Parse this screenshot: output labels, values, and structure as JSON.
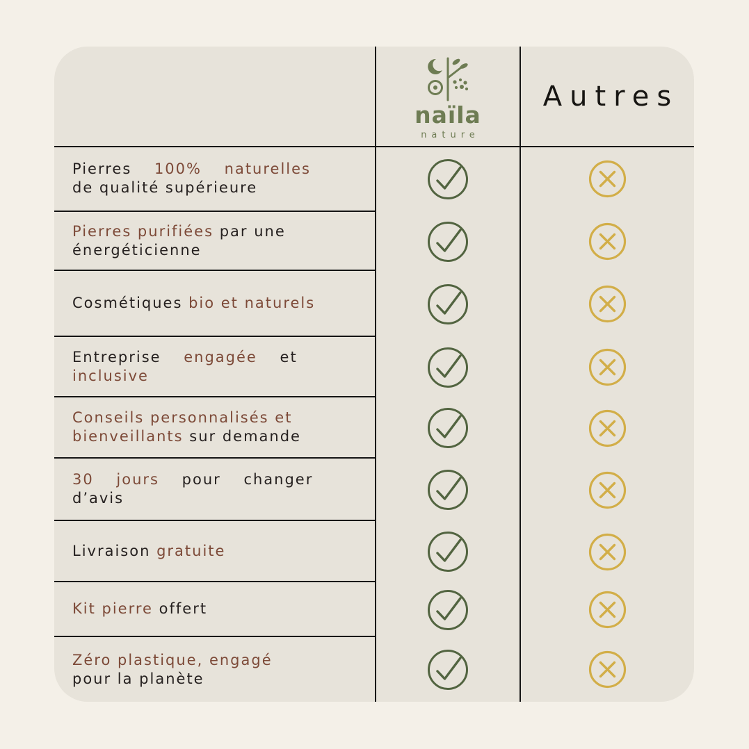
{
  "page": {
    "background": "#f4f0e8"
  },
  "card": {
    "background": "#e7e3da",
    "grid_line_color": "#141414"
  },
  "brand": {
    "wordmark": "naïla",
    "tagline": "nature",
    "logo_icon": "naila-botanical-logo-icon",
    "color": "#6e7c53"
  },
  "columns": {
    "competitor_label": "Autres"
  },
  "icons": {
    "check": {
      "name": "check-circle-icon",
      "color": "#526440"
    },
    "cross": {
      "name": "x-circle-icon",
      "color": "#d2ae48"
    }
  },
  "text_colors": {
    "default": "#262120",
    "accent": "#7d4a38"
  },
  "rows": [
    {
      "lines": [
        [
          {
            "t": "Pierres ",
            "a": 0
          },
          {
            "t": "100% naturelles",
            "a": 1
          }
        ],
        [
          {
            "t": "de qualité supérieure",
            "a": 0
          }
        ]
      ],
      "spread": [
        true,
        false
      ],
      "naila": "check",
      "autres": "cross"
    },
    {
      "lines": [
        [
          {
            "t": "Pierres purifiées",
            "a": 1
          },
          {
            "t": " par une",
            "a": 0
          }
        ],
        [
          {
            "t": "énergéticienne",
            "a": 0
          }
        ]
      ],
      "spread": [
        false,
        false
      ],
      "naila": "check",
      "autres": "cross"
    },
    {
      "lines": [
        [
          {
            "t": "Cosmétiques ",
            "a": 0
          },
          {
            "t": "bio et naturels",
            "a": 1
          }
        ]
      ],
      "spread": [
        false
      ],
      "naila": "check",
      "autres": "cross"
    },
    {
      "lines": [
        [
          {
            "t": "Entreprise ",
            "a": 0
          },
          {
            "t": "engagée",
            "a": 1
          },
          {
            "t": " et",
            "a": 0
          }
        ],
        [
          {
            "t": "inclusive",
            "a": 1
          }
        ]
      ],
      "spread": [
        true,
        false
      ],
      "naila": "check",
      "autres": "cross"
    },
    {
      "lines": [
        [
          {
            "t": "Conseils personnalisés et",
            "a": 1
          }
        ],
        [
          {
            "t": "bienveillants",
            "a": 1
          },
          {
            "t": " sur demande",
            "a": 0
          }
        ]
      ],
      "spread": [
        false,
        false
      ],
      "naila": "check",
      "autres": "cross"
    },
    {
      "lines": [
        [
          {
            "t": "30 jours",
            "a": 1
          },
          {
            "t": " pour changer",
            "a": 0
          }
        ],
        [
          {
            "t": "d’avis",
            "a": 0
          }
        ]
      ],
      "spread": [
        true,
        false
      ],
      "naila": "check",
      "autres": "cross"
    },
    {
      "lines": [
        [
          {
            "t": "Livraison ",
            "a": 0
          },
          {
            "t": "gratuite",
            "a": 1
          }
        ]
      ],
      "spread": [
        false
      ],
      "naila": "check",
      "autres": "cross"
    },
    {
      "lines": [
        [
          {
            "t": "Kit pierre",
            "a": 1
          },
          {
            "t": " offert",
            "a": 0
          }
        ]
      ],
      "spread": [
        false
      ],
      "naila": "check",
      "autres": "cross"
    },
    {
      "lines": [
        [
          {
            "t": "Zéro plastique, engagé",
            "a": 1
          }
        ],
        [
          {
            "t": "pour la planète",
            "a": 0
          }
        ]
      ],
      "spread": [
        false,
        false
      ],
      "naila": "check",
      "autres": "cross"
    }
  ]
}
